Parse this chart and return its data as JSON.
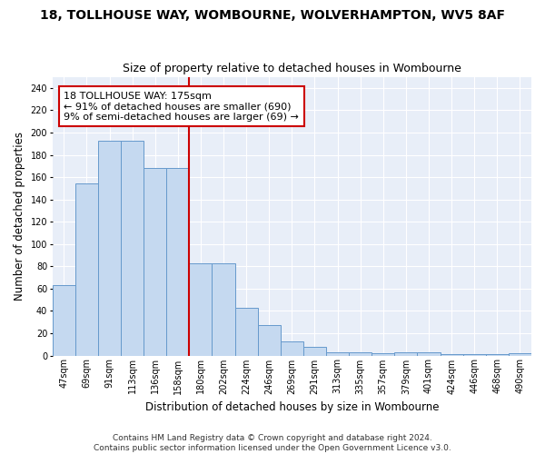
{
  "title": "18, TOLLHOUSE WAY, WOMBOURNE, WOLVERHAMPTON, WV5 8AF",
  "subtitle": "Size of property relative to detached houses in Wombourne",
  "xlabel": "Distribution of detached houses by size in Wombourne",
  "ylabel": "Number of detached properties",
  "bin_labels": [
    "47sqm",
    "69sqm",
    "91sqm",
    "113sqm",
    "136sqm",
    "158sqm",
    "180sqm",
    "202sqm",
    "224sqm",
    "246sqm",
    "269sqm",
    "291sqm",
    "313sqm",
    "335sqm",
    "357sqm",
    "379sqm",
    "401sqm",
    "424sqm",
    "446sqm",
    "468sqm",
    "490sqm"
  ],
  "bar_values": [
    63,
    154,
    193,
    193,
    168,
    168,
    83,
    83,
    43,
    27,
    13,
    8,
    3,
    3,
    2,
    3,
    3,
    1,
    1,
    1,
    2
  ],
  "bar_color": "#c5d9f0",
  "bar_edge_color": "#6699cc",
  "vline_index": 6,
  "vline_color": "#cc0000",
  "annotation_text": "18 TOLLHOUSE WAY: 175sqm\n← 91% of detached houses are smaller (690)\n9% of semi-detached houses are larger (69) →",
  "annotation_box_color": "#ffffff",
  "annotation_box_edge": "#cc0000",
  "ylim": [
    0,
    250
  ],
  "yticks": [
    0,
    20,
    40,
    60,
    80,
    100,
    120,
    140,
    160,
    180,
    200,
    220,
    240
  ],
  "footer": "Contains HM Land Registry data © Crown copyright and database right 2024.\nContains public sector information licensed under the Open Government Licence v3.0.",
  "bg_color": "#e8eef8",
  "grid_color": "#ffffff",
  "title_fontsize": 10,
  "subtitle_fontsize": 9,
  "axis_label_fontsize": 8.5,
  "tick_fontsize": 7,
  "annotation_fontsize": 8,
  "footer_fontsize": 6.5
}
